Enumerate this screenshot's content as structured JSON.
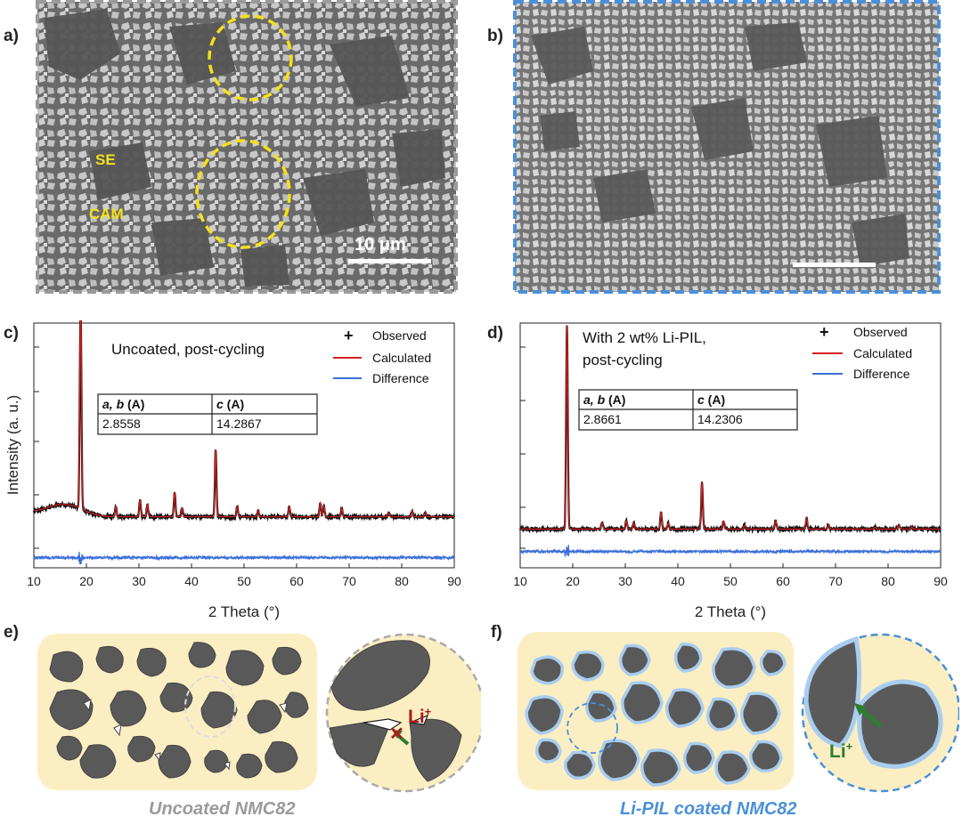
{
  "panels": {
    "a": {
      "label": "a)",
      "annotations": {
        "se": "SE",
        "cam": "CAM"
      },
      "scalebar": "10 μm"
    },
    "b": {
      "label": "b)"
    },
    "c": {
      "label": "c)",
      "title": "Uncoated, post-cycling",
      "table": {
        "h1_italic": "a, b",
        "h1_rest": " (A)",
        "h2_italic": "c",
        "h2_rest": " (A)",
        "v1": "2.8558",
        "v2": "14.2867"
      }
    },
    "d": {
      "label": "d)",
      "title_line1": "With 2 wt% Li-PIL,",
      "title_line2": "post-cycling",
      "table": {
        "h1_italic": "a, b",
        "h1_rest": " (A)",
        "h2_italic": "c",
        "h2_rest": " (A)",
        "v1": "2.8661",
        "v2": "14.2306"
      }
    },
    "e": {
      "label": "e)",
      "ion": "Li",
      "ion_charge": "+",
      "caption": "Uncoated NMC82"
    },
    "f": {
      "label": "f)",
      "ion": "Li",
      "ion_charge": "+",
      "caption": "Li-PIL coated NMC82"
    }
  },
  "legend": {
    "observed": "Observed",
    "calculated": "Calculated",
    "difference": "Difference"
  },
  "axes": {
    "xlabel": "2 Theta (°)",
    "ylabel": "Intensity (a. u.)"
  },
  "colors": {
    "observed": "#111111",
    "calculated": "#d62020",
    "difference": "#3a6fd8",
    "frame_a": "#999999",
    "frame_b": "#4a90d9",
    "electrolyte": "#fbeec3",
    "particle": "#555555",
    "coating": "#a9cdef",
    "ion_uncoated": "#b01818",
    "ion_coated": "#2e7d32",
    "caption_uncoated": "#9a9a9a",
    "caption_coated": "#4a90d9"
  },
  "chart_data": [
    {
      "type": "line",
      "title": "Uncoated, post-cycling",
      "xlabel": "2 Theta (°)",
      "ylabel": "Intensity (a. u.)",
      "xlim": [
        10,
        90
      ],
      "xticks": [
        10,
        20,
        30,
        40,
        50,
        60,
        70,
        80,
        90
      ],
      "ylim": [
        -0.15,
        1.05
      ],
      "background": "hump",
      "baseline": 0.1,
      "difference_offset": -0.1,
      "peaks": [
        [
          18.9,
          1.0
        ],
        [
          25.6,
          0.05
        ],
        [
          30.2,
          0.08
        ],
        [
          31.6,
          0.06
        ],
        [
          36.8,
          0.12
        ],
        [
          38.2,
          0.04
        ],
        [
          44.6,
          0.33
        ],
        [
          48.7,
          0.05
        ],
        [
          52.7,
          0.03
        ],
        [
          58.6,
          0.05
        ],
        [
          64.5,
          0.07
        ],
        [
          65.2,
          0.05
        ],
        [
          68.6,
          0.04
        ],
        [
          77.5,
          0.02
        ],
        [
          82.0,
          0.03
        ],
        [
          84.5,
          0.02
        ]
      ],
      "series": [
        {
          "name": "Observed"
        },
        {
          "name": "Calculated"
        },
        {
          "name": "Difference"
        }
      ],
      "table": [
        [
          "a, b (A)",
          "c (A)"
        ],
        [
          "2.8558",
          "14.2867"
        ]
      ]
    },
    {
      "type": "line",
      "title": "With 2 wt% Li-PIL, post-cycling",
      "xlabel": "2 Theta (°)",
      "ylabel": "",
      "xlim": [
        10,
        90
      ],
      "xticks": [
        10,
        20,
        30,
        40,
        50,
        60,
        70,
        80,
        90
      ],
      "ylim": [
        -0.15,
        1.05
      ],
      "background": "flat",
      "baseline": 0.04,
      "difference_offset": -0.07,
      "peaks": [
        [
          18.9,
          1.0
        ],
        [
          25.6,
          0.03
        ],
        [
          30.2,
          0.04
        ],
        [
          31.6,
          0.03
        ],
        [
          36.8,
          0.08
        ],
        [
          38.2,
          0.03
        ],
        [
          44.6,
          0.23
        ],
        [
          48.7,
          0.04
        ],
        [
          52.7,
          0.02
        ],
        [
          58.6,
          0.04
        ],
        [
          64.5,
          0.05
        ],
        [
          68.6,
          0.02
        ],
        [
          77.5,
          0.01
        ],
        [
          82.0,
          0.02
        ],
        [
          84.5,
          0.01
        ]
      ],
      "series": [
        {
          "name": "Observed"
        },
        {
          "name": "Calculated"
        },
        {
          "name": "Difference"
        }
      ],
      "table": [
        [
          "a, b (A)",
          "c (A)"
        ],
        [
          "2.8661",
          "14.2306"
        ]
      ]
    }
  ]
}
